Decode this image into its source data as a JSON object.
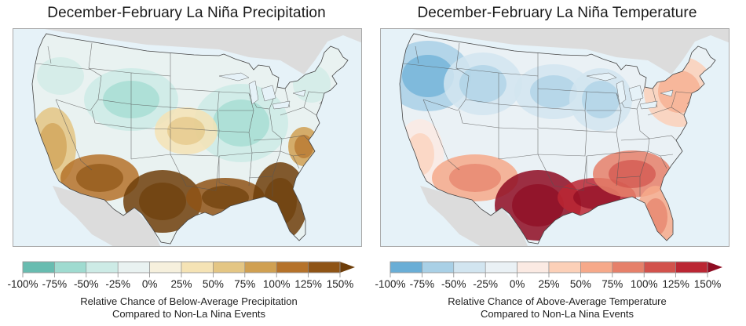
{
  "chart_data": [
    {
      "type": "heatmap",
      "subtype": "choropleth-map",
      "title": "December-February La Niña Precipitation",
      "region": "Contiguous United States",
      "variable": "Relative Chance of Below-Average Precipitation Compared to Non-La Nina Events",
      "colorbar": {
        "label_line1": "Relative Chance of Below-Average Precipitation",
        "label_line2": "Compared to Non-La Nina Events",
        "ticks": [
          "-100%",
          "-75%",
          "-50%",
          "-25%",
          "0%",
          "25%",
          "50%",
          "75%",
          "100%",
          "125%",
          "150%"
        ],
        "tick_values": [
          -100,
          -75,
          -50,
          -25,
          0,
          25,
          50,
          75,
          100,
          125,
          150
        ],
        "bin_colors": [
          "#68bcb0",
          "#9fdbd0",
          "#cdebe6",
          "#e9f2f1",
          "#f6f0dd",
          "#f5e3b5",
          "#e4c684",
          "#d0a052",
          "#b5722a",
          "#8f5416"
        ],
        "extend_color": "#6e3e0a",
        "extend": "max",
        "range": [
          -100,
          150
        ]
      },
      "regional_pattern": [
        {
          "region": "Northwest",
          "approx_value_pct": -25
        },
        {
          "region": "Northern Rockies / Wyoming",
          "approx_value_pct": -50
        },
        {
          "region": "Great Lakes / Ohio Valley",
          "approx_value_pct": -40
        },
        {
          "region": "Northeast",
          "approx_value_pct": -25
        },
        {
          "region": "California",
          "approx_value_pct": 60
        },
        {
          "region": "Desert Southwest",
          "approx_value_pct": 100
        },
        {
          "region": "Texas",
          "approx_value_pct": 150
        },
        {
          "region": "Gulf Coast",
          "approx_value_pct": 125
        },
        {
          "region": "Florida / Georgia",
          "approx_value_pct": 150
        },
        {
          "region": "Mid-Atlantic coast",
          "approx_value_pct": 75
        },
        {
          "region": "Central Plains",
          "approx_value_pct": 40
        }
      ]
    },
    {
      "type": "heatmap",
      "subtype": "choropleth-map",
      "title": "December-February La Niña Temperature",
      "region": "Contiguous United States",
      "variable": "Relative Chance of Above-Average Temperature Compared to Non-La Nina Events",
      "colorbar": {
        "label_line1": "Relative Chance of Above-Average Temperature",
        "label_line2": "Compared to Non-La Nina Events",
        "ticks": [
          "-100%",
          "-75%",
          "-50%",
          "-25%",
          "0%",
          "25%",
          "50%",
          "75%",
          "100%",
          "125%",
          "150%"
        ],
        "tick_values": [
          -100,
          -75,
          -50,
          -25,
          0,
          25,
          50,
          75,
          100,
          125,
          150
        ],
        "bin_colors": [
          "#6aaed6",
          "#a9d0e6",
          "#d2e5f0",
          "#eaf1f5",
          "#fbeae3",
          "#fcd0b8",
          "#f6a98a",
          "#e6806a",
          "#d2524c",
          "#bb2633"
        ],
        "extend_color": "#8e0c22",
        "extend": "max",
        "range": [
          -100,
          150
        ]
      },
      "regional_pattern": [
        {
          "region": "Pacific Northwest",
          "approx_value_pct": -60
        },
        {
          "region": "Northern Rockies",
          "approx_value_pct": -50
        },
        {
          "region": "Northern Plains",
          "approx_value_pct": -30
        },
        {
          "region": "Upper Midwest",
          "approx_value_pct": -30
        },
        {
          "region": "Northeast",
          "approx_value_pct": 25
        },
        {
          "region": "California",
          "approx_value_pct": 10
        },
        {
          "region": "Desert Southwest",
          "approx_value_pct": 50
        },
        {
          "region": "Texas",
          "approx_value_pct": 150
        },
        {
          "region": "Gulf Coast",
          "approx_value_pct": 125
        },
        {
          "region": "Southeast",
          "approx_value_pct": 75
        },
        {
          "region": "Florida",
          "approx_value_pct": 50
        }
      ]
    }
  ],
  "left": {
    "title": "December-February La Niña Precipitation",
    "caption_1": "Relative Chance of Below-Average Precipitation",
    "caption_2": "Compared to Non-La Nina Events"
  },
  "right": {
    "title": "December-February La Niña Temperature",
    "caption_1": "Relative Chance of Above-Average Temperature",
    "caption_2": "Compared to Non-La Nina Events"
  },
  "map_colors": {
    "ocean": "#e6f2f8",
    "foreign_land": "#dcdcdc",
    "border": "#a9a9a9",
    "state_lines": "#555555"
  }
}
